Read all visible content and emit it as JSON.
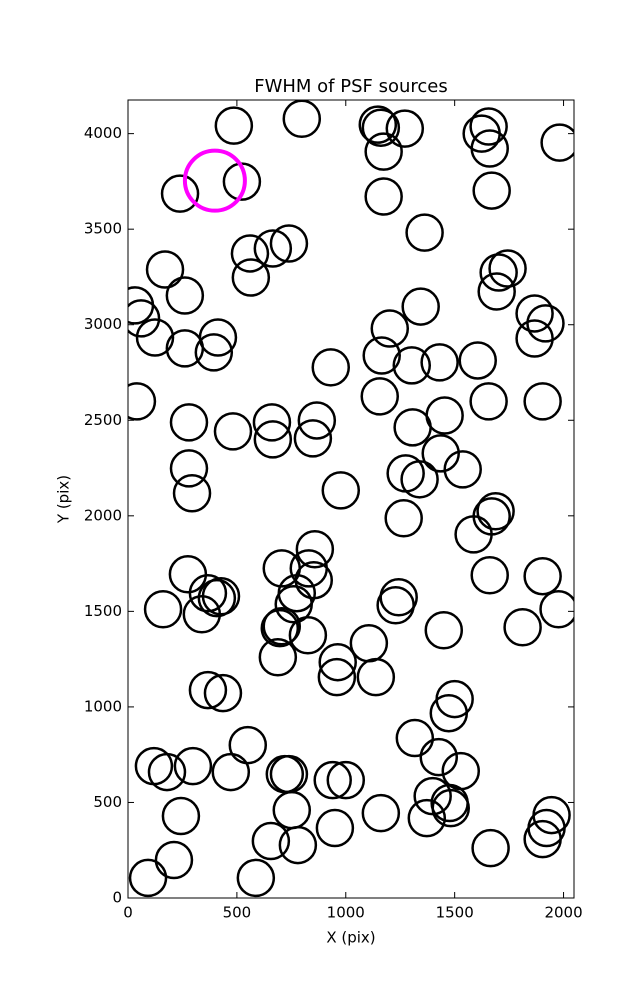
{
  "chart_data": {
    "type": "scatter",
    "title": "FWHM of PSF sources",
    "x_label": "X (pix)",
    "y_label": "Y (pix)",
    "xlim": [
      0,
      2048
    ],
    "ylim": [
      0,
      4176
    ],
    "xticks": [
      0,
      500,
      1000,
      1500,
      2000
    ],
    "yticks": [
      0,
      500,
      1000,
      1500,
      2000,
      2500,
      3000,
      3500,
      4000
    ],
    "series": [
      {
        "color": "#000000",
        "x": [
          486,
          798,
          1147,
          1161,
          1271,
          1174,
          1624,
          1656,
          1661,
          1982,
          239,
          523,
          1174,
          1670,
          1362,
          560,
          564,
          665,
          739,
          170,
          261,
          32,
          60,
          124,
          261,
          413,
          394,
          1344,
          1702,
          1743,
          1693,
          1867,
          1917,
          1867,
          1202,
          1165,
          1303,
          1431,
          1606,
          931,
          41,
          1156,
          1656,
          1904,
          280,
          482,
          661,
          665,
          867,
          849,
          1307,
          1454,
          1436,
          1537,
          1275,
          1339,
          280,
          294,
          977,
          1266,
          1587,
          1688,
          1670,
          858,
          706,
          830,
          853,
          775,
          761,
          275,
          367,
          427,
          408,
          339,
          161,
          1243,
          1229,
          1661,
          1904,
          1977,
          697,
          706,
          826,
          1450,
          1812,
          688,
          963,
          959,
          1106,
          1138,
          1500,
          1473,
          367,
          436,
          550,
          1317,
          1427,
          1528,
          119,
          179,
          298,
          472,
          720,
          739,
          752,
          940,
          1000,
          1161,
          1399,
          1477,
          1482,
          1372,
          1945,
          1922,
          1904,
          243,
          950,
          656,
          780,
          1665,
          211,
          92,
          587
        ],
        "y": [
          4042,
          4078,
          4047,
          4031,
          4026,
          3906,
          4000,
          4037,
          3922,
          3953,
          3686,
          3749,
          3671,
          3702,
          3482,
          3373,
          3247,
          3399,
          3425,
          3289,
          3153,
          3101,
          3033,
          2933,
          2876,
          2933,
          2855,
          3095,
          3273,
          3294,
          3174,
          3059,
          3007,
          2928,
          2980,
          2839,
          2787,
          2803,
          2813,
          2777,
          2599,
          2625,
          2599,
          2599,
          2489,
          2442,
          2489,
          2400,
          2499,
          2405,
          2463,
          2525,
          2327,
          2243,
          2222,
          2191,
          2248,
          2118,
          2133,
          1987,
          1903,
          2024,
          1997,
          1825,
          1725,
          1725,
          1663,
          1595,
          1537,
          1694,
          1595,
          1579,
          1569,
          1485,
          1511,
          1574,
          1532,
          1689,
          1684,
          1511,
          1412,
          1422,
          1375,
          1401,
          1417,
          1260,
          1234,
          1156,
          1333,
          1156,
          1041,
          967,
          1088,
          1072,
          800,
          837,
          737,
          664,
          690,
          659,
          690,
          659,
          648,
          648,
          460,
          617,
          617,
          444,
          533,
          497,
          470,
          418,
          434,
          366,
          308,
          429,
          366,
          298,
          277,
          261,
          199,
          105,
          105
        ]
      },
      {
        "color": "#ff00ff",
        "x": [
          399
        ],
        "y": [
          3754
        ]
      }
    ]
  }
}
